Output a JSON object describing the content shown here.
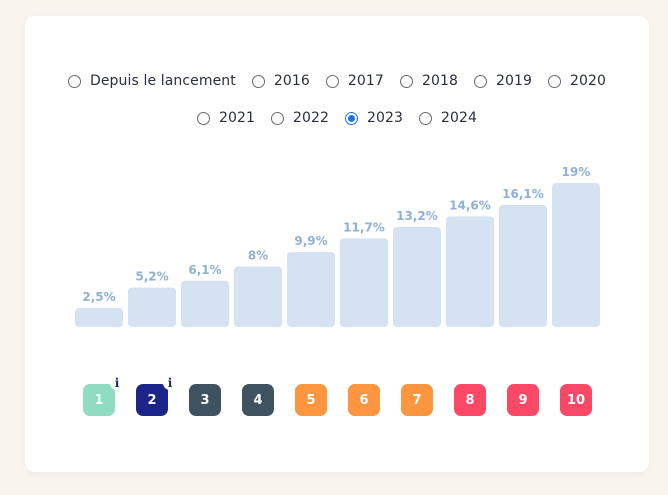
{
  "period_filter": {
    "options": [
      "Depuis le lancement",
      "2016",
      "2017",
      "2018",
      "2019",
      "2020",
      "2021",
      "2022",
      "2023",
      "2024"
    ],
    "selected": "2023"
  },
  "chart_data": {
    "type": "bar",
    "categories": [
      "1",
      "2",
      "3",
      "4",
      "5",
      "6",
      "7",
      "8",
      "9",
      "10"
    ],
    "values": [
      2.5,
      5.2,
      6.1,
      8,
      9.9,
      11.7,
      13.2,
      14.6,
      16.1,
      19
    ],
    "value_labels": [
      "2,5%",
      "5,2%",
      "6,1%",
      "8%",
      "9,9%",
      "11,7%",
      "13,2%",
      "14,6%",
      "16,1%",
      "19%"
    ],
    "title": "",
    "xlabel": "",
    "ylabel": "",
    "ylim": [
      0,
      19
    ],
    "grid": false,
    "bar_color": "#d5e2f2",
    "label_color": "#8fb1d6"
  },
  "risk_badges": [
    {
      "label": "1",
      "color": "#8fdcc2",
      "info_icon": true
    },
    {
      "label": "2",
      "color": "#1a2489",
      "info_icon": true
    },
    {
      "label": "3",
      "color": "#3e5260",
      "info_icon": false
    },
    {
      "label": "4",
      "color": "#3e5260",
      "info_icon": false
    },
    {
      "label": "5",
      "color": "#fe953f",
      "info_icon": false
    },
    {
      "label": "6",
      "color": "#fe953f",
      "info_icon": false
    },
    {
      "label": "7",
      "color": "#fe953f",
      "info_icon": false
    },
    {
      "label": "8",
      "color": "#fb4867",
      "info_icon": false
    },
    {
      "label": "9",
      "color": "#fb4867",
      "info_icon": false
    },
    {
      "label": "10",
      "color": "#fb4867",
      "info_icon": false
    }
  ],
  "info_icon_glyph": "i"
}
